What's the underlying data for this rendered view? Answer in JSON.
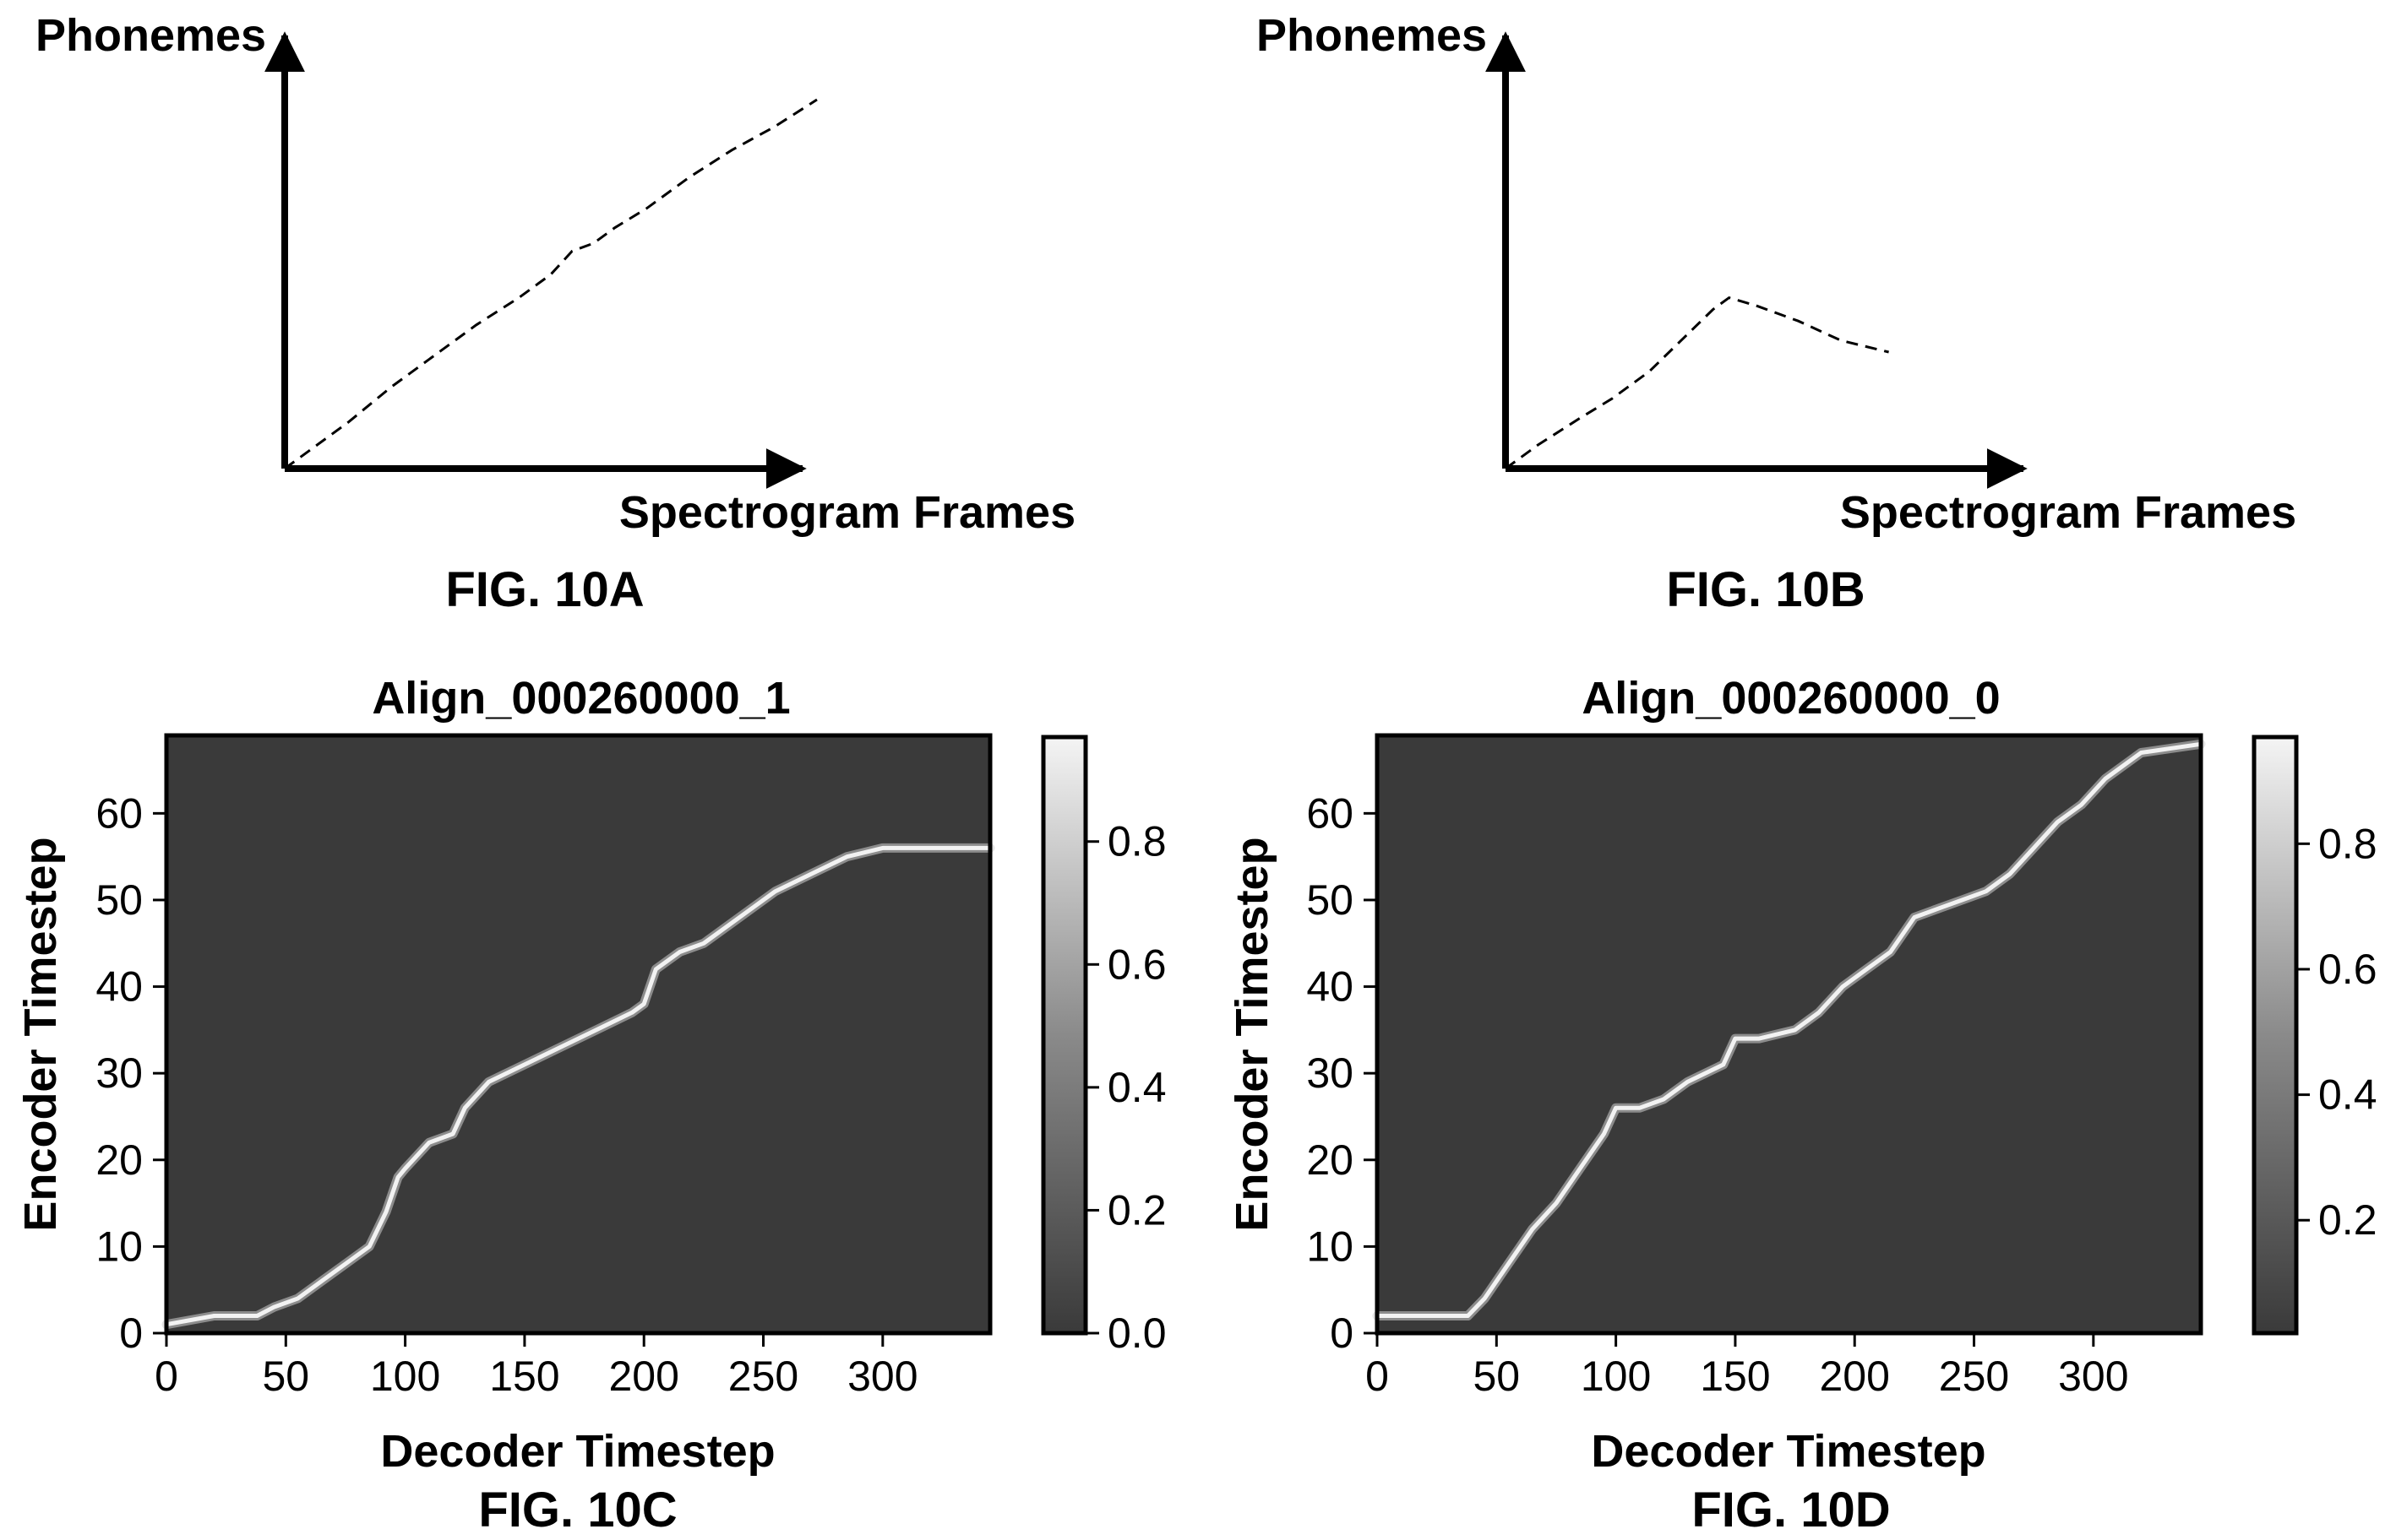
{
  "fig_a": {
    "ylabel": "Phonemes",
    "xlabel": "Spectrogram Frames",
    "caption": "FIG. 10A"
  },
  "fig_b": {
    "ylabel": "Phonemes",
    "xlabel": "Spectrogram Frames",
    "caption": "FIG. 10B"
  },
  "fig_c": {
    "title": "Align_000260000_1",
    "xlabel": "Decoder Timestep",
    "ylabel": "Encoder Timestep",
    "caption": "FIG. 10C"
  },
  "fig_d": {
    "title": "Align_000260000_0",
    "xlabel": "Decoder Timestep",
    "ylabel": "Encoder Timestep",
    "caption": "FIG. 10D"
  },
  "colors": {
    "background": "#ffffff",
    "heatmap_low": "#3a3a3a",
    "heatmap_high": "#f4f4f4",
    "ink": "#000000"
  },
  "chart_data": [
    {
      "id": "fig_a",
      "type": "line",
      "style": "dashed",
      "series": [
        {
          "x": [
            0,
            0.05,
            0.12,
            0.2,
            0.28,
            0.36,
            0.44,
            0.5,
            0.54,
            0.58,
            0.62,
            0.68,
            0.76,
            0.84,
            0.92,
            1.0
          ],
          "y": [
            0,
            0.05,
            0.12,
            0.21,
            0.29,
            0.37,
            0.44,
            0.5,
            0.56,
            0.58,
            0.62,
            0.67,
            0.75,
            0.82,
            0.88,
            0.95
          ]
        }
      ]
    },
    {
      "id": "fig_b",
      "type": "line",
      "style": "dashed",
      "series": [
        {
          "x": [
            0,
            0.06,
            0.14,
            0.2,
            0.27,
            0.33,
            0.39,
            0.42,
            0.47,
            0.55,
            0.63,
            0.72
          ],
          "y": [
            0,
            0.06,
            0.13,
            0.18,
            0.25,
            0.33,
            0.41,
            0.44,
            0.42,
            0.38,
            0.33,
            0.3
          ]
        }
      ]
    },
    {
      "id": "fig_c",
      "type": "heatmap",
      "title": "Align_000260000_1",
      "xlabel": "Decoder Timestep",
      "ylabel": "Encoder Timestep",
      "xlim": [
        0,
        345
      ],
      "ylim": [
        0,
        69
      ],
      "xticks": [
        "0",
        "50",
        "100",
        "150",
        "200",
        "250",
        "300"
      ],
      "yticks": [
        "0",
        "10",
        "20",
        "30",
        "40",
        "50",
        "60"
      ],
      "colorbar": {
        "range": [
          0.0,
          0.97
        ],
        "ticks": [
          "0.0",
          "0.2",
          "0.4",
          "0.6",
          "0.8"
        ]
      },
      "alignment_path": {
        "x": [
          0,
          20,
          38,
          45,
          55,
          65,
          75,
          85,
          92,
          97,
          100,
          110,
          120,
          125,
          135,
          150,
          165,
          180,
          195,
          200,
          205,
          215,
          225,
          240,
          255,
          270,
          285,
          300,
          345
        ],
        "y": [
          1,
          2,
          2,
          3,
          4,
          6,
          8,
          10,
          14,
          18,
          19,
          22,
          23,
          26,
          29,
          31,
          33,
          35,
          37,
          38,
          42,
          44,
          45,
          48,
          51,
          53,
          55,
          56,
          56
        ]
      }
    },
    {
      "id": "fig_d",
      "type": "heatmap",
      "title": "Align_000260000_0",
      "xlabel": "Decoder Timestep",
      "ylabel": "Encoder Timestep",
      "xlim": [
        0,
        345
      ],
      "ylim": [
        0,
        69
      ],
      "xticks": [
        "0",
        "50",
        "100",
        "150",
        "200",
        "250",
        "300"
      ],
      "yticks": [
        "0",
        "10",
        "20",
        "30",
        "40",
        "50",
        "60"
      ],
      "colorbar": {
        "range": [
          0.02,
          0.97
        ],
        "ticks": [
          "0.2",
          "0.4",
          "0.6",
          "0.8"
        ]
      },
      "alignment_path": {
        "x": [
          0,
          20,
          38,
          45,
          55,
          65,
          75,
          85,
          95,
          100,
          110,
          120,
          130,
          145,
          150,
          160,
          175,
          185,
          195,
          205,
          215,
          225,
          235,
          245,
          255,
          265,
          275,
          285,
          295,
          305,
          320,
          345
        ],
        "y": [
          2,
          2,
          2,
          4,
          8,
          12,
          15,
          19,
          23,
          26,
          26,
          27,
          29,
          31,
          34,
          34,
          35,
          37,
          40,
          42,
          44,
          48,
          49,
          50,
          51,
          53,
          56,
          59,
          61,
          64,
          67,
          68
        ]
      }
    }
  ]
}
